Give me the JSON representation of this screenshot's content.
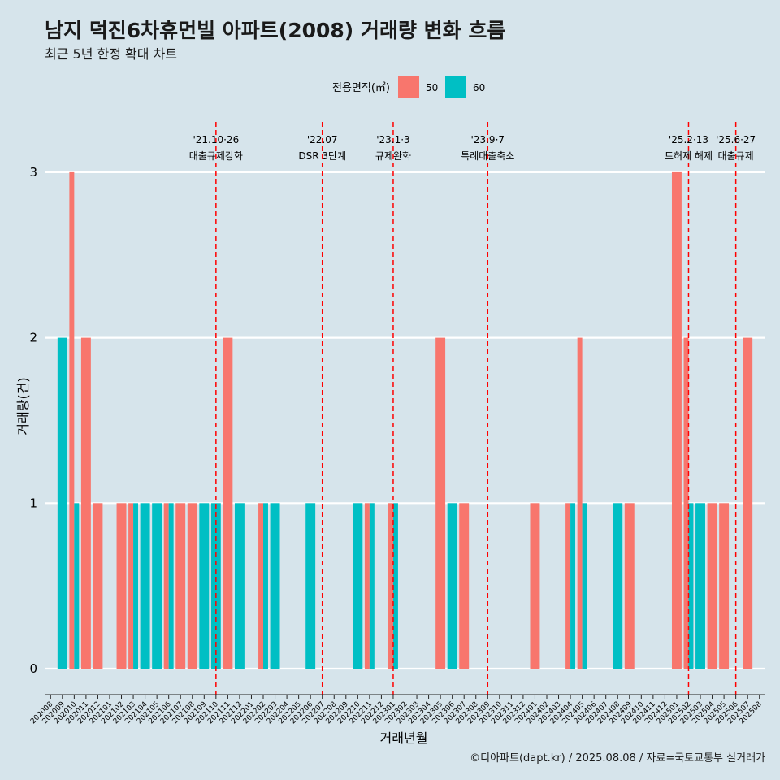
{
  "chart_data": {
    "type": "bar",
    "title": "남지 덕진6차휴먼빌 아파트(2008) 거래량 변화 흐름",
    "subtitle": "최근 5년 한정 확대 차트",
    "xlabel": "거래년월",
    "ylabel": "거래량(건)",
    "ylim": [
      0,
      3
    ],
    "yticks": [
      "0",
      "1",
      "2",
      "3"
    ],
    "grid": true,
    "legend": {
      "title": "전용면적(㎡)",
      "position": "top",
      "entries": [
        {
          "label": "50",
          "color": "#f8766d"
        },
        {
          "label": "60",
          "color": "#00bfc4"
        }
      ]
    },
    "categories": [
      "202008",
      "202009",
      "202010",
      "202011",
      "202012",
      "202101",
      "202102",
      "202103",
      "202104",
      "202105",
      "202106",
      "202107",
      "202108",
      "202109",
      "202110",
      "202111",
      "202112",
      "202201",
      "202202",
      "202203",
      "202204",
      "202205",
      "202206",
      "202207",
      "202208",
      "202209",
      "202210",
      "202211",
      "202212",
      "202301",
      "202302",
      "202303",
      "202304",
      "202305",
      "202306",
      "202307",
      "202308",
      "202309",
      "202310",
      "202311",
      "202312",
      "202401",
      "202402",
      "202403",
      "202404",
      "202405",
      "202406",
      "202407",
      "202408",
      "202409",
      "202410",
      "202411",
      "202412",
      "202501",
      "202502",
      "202503",
      "202504",
      "202505",
      "202506",
      "202507",
      "202508"
    ],
    "series": [
      {
        "name": "50",
        "color": "#f8766d",
        "values": [
          0,
          0,
          3,
          2,
          1,
          0,
          1,
          1,
          0,
          0,
          1,
          1,
          1,
          0,
          0,
          2,
          0,
          0,
          1,
          0,
          0,
          0,
          0,
          0,
          0,
          0,
          0,
          1,
          0,
          1,
          0,
          0,
          0,
          2,
          0,
          1,
          0,
          0,
          0,
          0,
          0,
          1,
          0,
          0,
          1,
          2,
          0,
          0,
          0,
          1,
          0,
          0,
          0,
          3,
          2,
          0,
          1,
          1,
          0,
          2,
          0
        ]
      },
      {
        "name": "60",
        "color": "#00bfc4",
        "values": [
          0,
          2,
          1,
          0,
          0,
          0,
          0,
          1,
          1,
          1,
          1,
          0,
          0,
          1,
          1,
          0,
          1,
          0,
          1,
          1,
          0,
          0,
          1,
          0,
          0,
          0,
          1,
          1,
          0,
          1,
          0,
          0,
          0,
          0,
          1,
          0,
          0,
          0,
          0,
          0,
          0,
          0,
          0,
          0,
          1,
          1,
          0,
          0,
          1,
          0,
          0,
          0,
          0,
          0,
          1,
          1,
          0,
          0,
          0,
          0,
          0
        ]
      }
    ],
    "annotations": [
      {
        "at": "202110",
        "date": "'21.10·26",
        "text": "대출규제강화"
      },
      {
        "at": "202207",
        "date": "'22.07",
        "text": "DSR 3단계"
      },
      {
        "at": "202301",
        "date": "'23.1·3",
        "text": "규제완화"
      },
      {
        "at": "202309",
        "date": "'23.9·7",
        "text": "특례대출축소"
      },
      {
        "at": "202502",
        "date": "'25.2·13",
        "text": "토허제 해제"
      },
      {
        "at": "202506",
        "date": "'25.6·27",
        "text": "대출규제"
      }
    ],
    "annotation_line_color": "#ff0000"
  },
  "caption": "©디아파트(dapt.kr) / 2025.08.08 / 자료=국토교통부 실거래가"
}
